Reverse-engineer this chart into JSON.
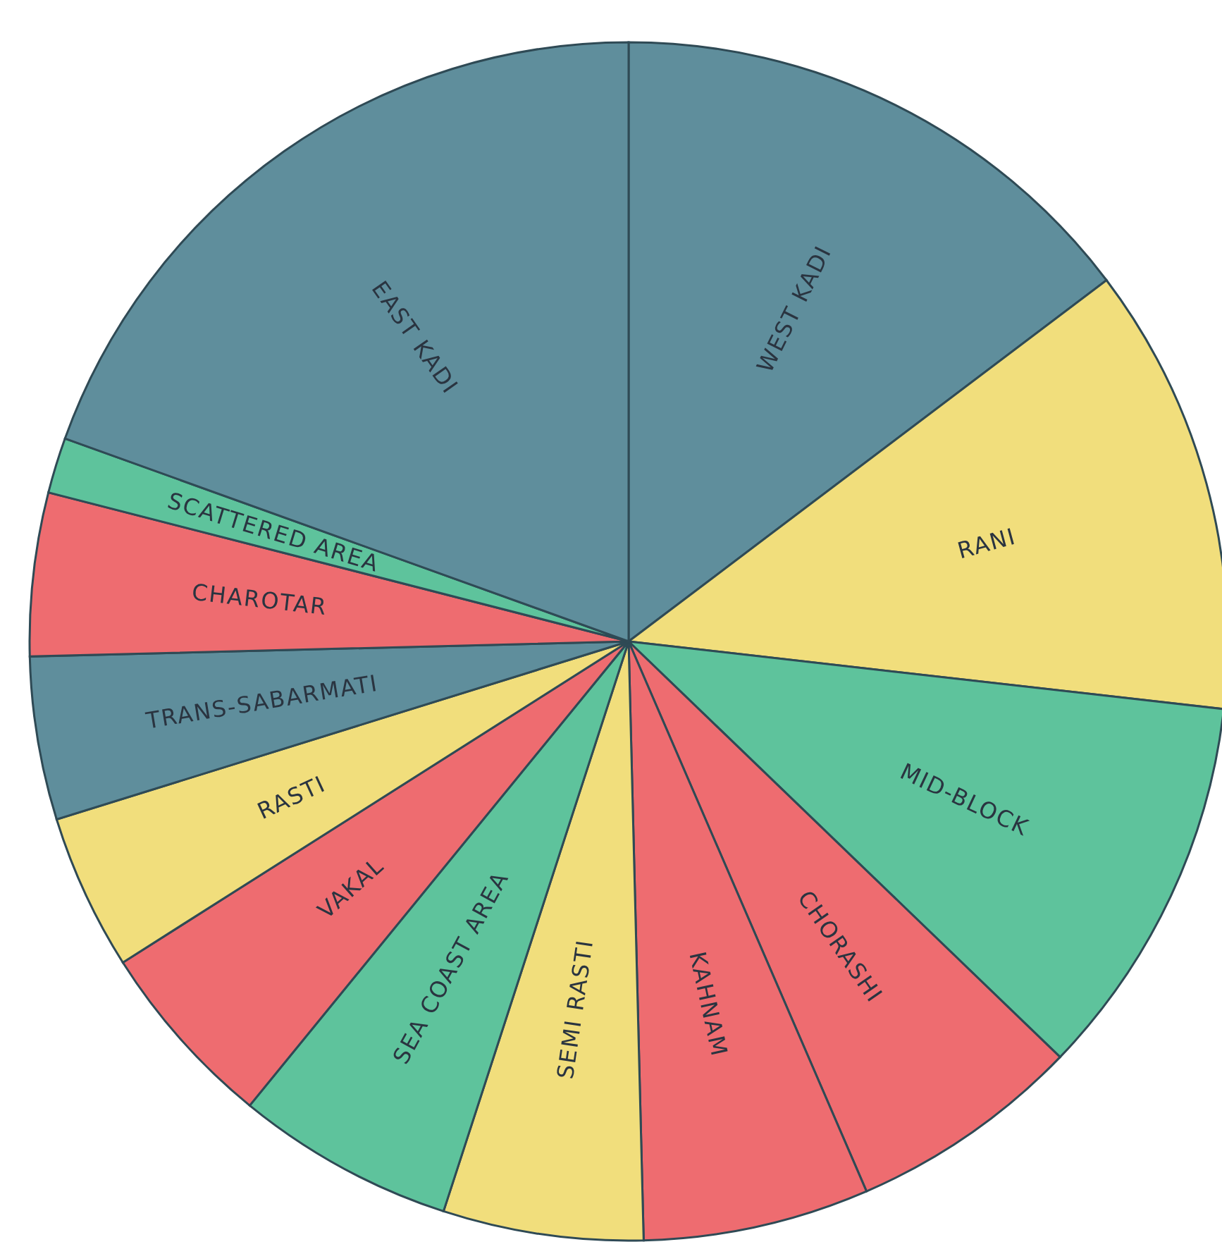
{
  "chart_data": {
    "type": "pie",
    "categories": [
      "WEST KADI",
      "RANI",
      "MID-BLOCK",
      "CHORASHI",
      "KAHNAM",
      "SEMI RASTI",
      "SEA COAST AREA",
      "VAKAL",
      "RASTI",
      "TRANS-SABARMATI",
      "CHAROTAR",
      "SCATTERED AREA",
      "EAST KADI"
    ],
    "values": [
      14.7,
      12.1,
      10.4,
      6.3,
      6.1,
      5.4,
      5.9,
      5.1,
      4.2,
      4.4,
      4.4,
      1.5,
      19.5
    ],
    "colors": [
      "#5f8e9c",
      "#f1de7c",
      "#5ec39c",
      "#ee6c70",
      "#ee6c70",
      "#f1de7c",
      "#5ec39c",
      "#ee6c70",
      "#f1de7c",
      "#5f8e9c",
      "#ee6c70",
      "#5ec39c",
      "#5f8e9c"
    ],
    "legend": false
  }
}
